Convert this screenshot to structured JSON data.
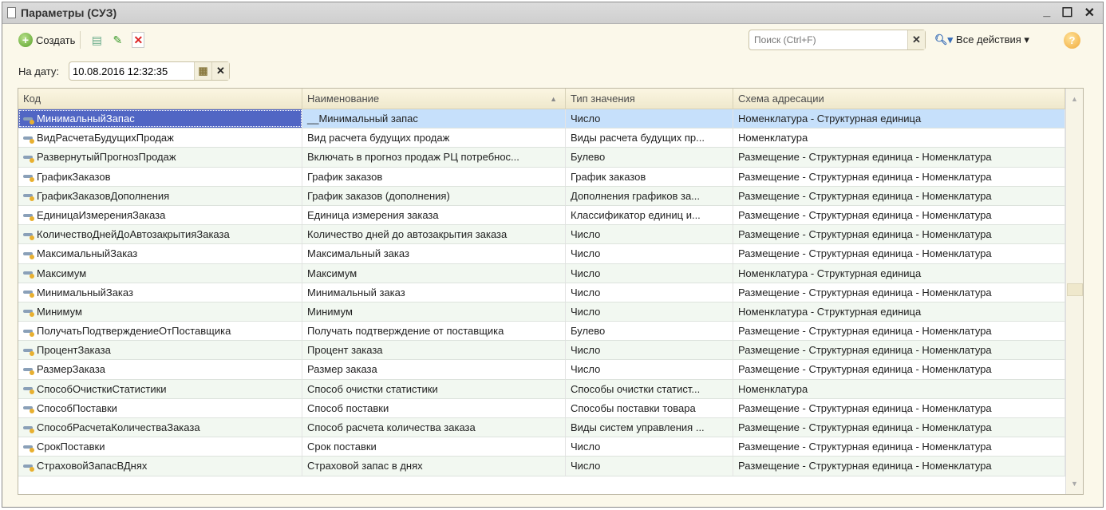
{
  "window": {
    "title": "Параметры (СУЗ)",
    "minimize": "_",
    "maximize": "☐",
    "close": "✕"
  },
  "toolbar": {
    "create_label": "Создать",
    "search_placeholder": "Поиск (Ctrl+F)",
    "all_actions": "Все действия",
    "help": "?"
  },
  "filter": {
    "label": "На дату:",
    "value": "10.08.2016 12:32:35"
  },
  "table": {
    "columns": [
      "Код",
      "Наименование",
      "Тип значения",
      "Схема адресации"
    ],
    "rows": [
      [
        "МинимальныйЗапас",
        "__Минимальный запас",
        "Число",
        "Номенклатура - Структурная единица"
      ],
      [
        "ВидРасчетаБудущихПродаж",
        "Вид расчета будущих продаж",
        "Виды расчета будущих пр...",
        "Номенклатура"
      ],
      [
        "РазвернутыйПрогнозПродаж",
        "Включать в прогноз продаж РЦ потребнос...",
        "Булево",
        "Размещение - Структурная единица - Номенклатура"
      ],
      [
        "ГрафикЗаказов",
        "График заказов",
        "График заказов",
        "Размещение - Структурная единица - Номенклатура"
      ],
      [
        "ГрафикЗаказовДополнения",
        "График заказов (дополнения)",
        "Дополнения графиков за...",
        "Размещение - Структурная единица - Номенклатура"
      ],
      [
        "ЕдиницаИзмеренияЗаказа",
        "Единица измерения заказа",
        "Классификатор единиц и...",
        "Размещение - Структурная единица - Номенклатура"
      ],
      [
        "КоличествоДнейДоАвтозакрытияЗаказа",
        "Количество дней до автозакрытия заказа",
        "Число",
        "Размещение - Структурная единица - Номенклатура"
      ],
      [
        "МаксимальныйЗаказ",
        "Максимальный заказ",
        "Число",
        "Размещение - Структурная единица - Номенклатура"
      ],
      [
        "Максимум",
        "Максимум",
        "Число",
        "Номенклатура - Структурная единица"
      ],
      [
        "МинимальныйЗаказ",
        "Минимальный заказ",
        "Число",
        "Размещение - Структурная единица - Номенклатура"
      ],
      [
        "Минимум",
        "Минимум",
        "Число",
        "Номенклатура - Структурная единица"
      ],
      [
        "ПолучатьПодтверждениеОтПоставщика",
        "Получать подтверждение от поставщика",
        "Булево",
        "Размещение - Структурная единица - Номенклатура"
      ],
      [
        "ПроцентЗаказа",
        "Процент заказа",
        "Число",
        "Размещение - Структурная единица - Номенклатура"
      ],
      [
        "РазмерЗаказа",
        "Размер заказа",
        "Число",
        "Размещение - Структурная единица - Номенклатура"
      ],
      [
        "СпособОчисткиСтатистики",
        "Способ очистки статистики",
        "Способы очистки статист...",
        "Номенклатура"
      ],
      [
        "СпособПоставки",
        "Способ поставки",
        "Способы поставки товара",
        "Размещение - Структурная единица - Номенклатура"
      ],
      [
        "СпособРасчетаКоличестваЗаказа",
        "Способ расчета количества заказа",
        "Виды систем управления ...",
        "Размещение - Структурная единица - Номенклатура"
      ],
      [
        "СрокПоставки",
        "Срок поставки",
        "Число",
        "Размещение - Структурная единица - Номенклатура"
      ],
      [
        "СтраховойЗапасВДнях",
        "Страховой запас в днях",
        "Число",
        "Размещение - Структурная единица - Номенклатура"
      ]
    ]
  }
}
